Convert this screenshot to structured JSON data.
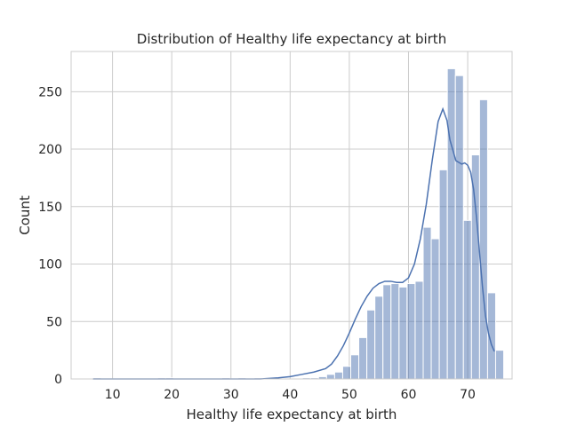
{
  "chart_data": {
    "type": "bar",
    "subtype": "histogram-with-kde",
    "title": "Distribution of Healthy life expectancy at birth",
    "xlabel": "Healthy life expectancy at birth",
    "ylabel": "Count",
    "xlim": [
      3.0,
      77.5
    ],
    "ylim": [
      0,
      285
    ],
    "xticks": [
      10,
      20,
      30,
      40,
      50,
      60,
      70
    ],
    "yticks": [
      0,
      50,
      100,
      150,
      200,
      250
    ],
    "grid": true,
    "bar_color": "#4c72b0",
    "bar_opacity": 0.5,
    "line_color": "#4c72b0",
    "bin_start": 6.72,
    "bin_width": 1.36,
    "counts": [
      1,
      0,
      0,
      0,
      0,
      0,
      0,
      0,
      1,
      1,
      0,
      0,
      0,
      0,
      0,
      0,
      1,
      0,
      1,
      0,
      1,
      0,
      0,
      0,
      0,
      0,
      1,
      1,
      2,
      4,
      6,
      11,
      21,
      36,
      60,
      72,
      82,
      83,
      80,
      83,
      85,
      132,
      122,
      182,
      270,
      264,
      138,
      195,
      243,
      75,
      25
    ],
    "kde_x": [
      6.7,
      10,
      15,
      20,
      25,
      30,
      35,
      38,
      40,
      42,
      44,
      46,
      47,
      48,
      49,
      50,
      51,
      52,
      53,
      54,
      55,
      56,
      57,
      58,
      59,
      60,
      61,
      62,
      63,
      64,
      65,
      65.8,
      66.5,
      67,
      68,
      69,
      69.5,
      70,
      70.5,
      71,
      71.5,
      72,
      72.5,
      73,
      73.5,
      74,
      74.5
    ],
    "kde_y": [
      0,
      0,
      0,
      0,
      0,
      0,
      0,
      1,
      2,
      4,
      6,
      9,
      13,
      20,
      29,
      40,
      52,
      63,
      72,
      79,
      83,
      85,
      85,
      84,
      84,
      88,
      100,
      122,
      152,
      190,
      224,
      235,
      225,
      208,
      190,
      187,
      188,
      186,
      180,
      165,
      140,
      110,
      80,
      55,
      40,
      30,
      24
    ]
  }
}
